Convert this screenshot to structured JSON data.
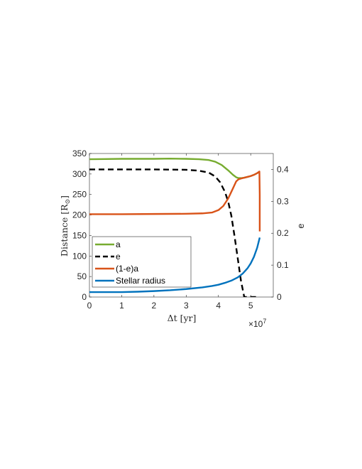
{
  "chart_data": {
    "type": "line",
    "xlabel": "Δt [yr]",
    "x_multiplier_label": "×10",
    "x_multiplier_exp": "7",
    "ylabel_left": "Distance [R",
    "ylabel_left_symbol": "⊙",
    "ylabel_left_end": "]",
    "ylabel_right": "e",
    "xlim": [
      0,
      5.7
    ],
    "ylim_left": [
      0,
      350
    ],
    "ylim_right": [
      0,
      0.45
    ],
    "x_ticks": [
      0,
      1,
      2,
      3,
      4,
      5
    ],
    "x_tick_labels": [
      "0",
      "1",
      "2",
      "3",
      "4",
      "5"
    ],
    "y_left_ticks": [
      0,
      50,
      100,
      150,
      200,
      250,
      300,
      350
    ],
    "y_left_tick_labels": [
      "0",
      "50",
      "100",
      "150",
      "200",
      "250",
      "300",
      "350"
    ],
    "y_right_ticks": [
      0,
      0.1,
      0.2,
      0.3,
      0.4
    ],
    "y_right_tick_labels": [
      "0",
      "0.1",
      "0.2",
      "0.3",
      "0.4"
    ],
    "grid": false,
    "legend_position": "bottom-left",
    "series": [
      {
        "name": "a",
        "axis": "left",
        "color": "#77AC30",
        "style": "solid",
        "x": [
          0,
          0.5,
          1.0,
          1.5,
          2.0,
          2.5,
          3.0,
          3.4,
          3.7,
          3.9,
          4.1,
          4.3,
          4.45,
          4.55,
          4.62,
          4.7,
          4.8,
          4.9,
          5.0,
          5.1,
          5.2,
          5.28
        ],
        "y": [
          336,
          336.5,
          337,
          337,
          337,
          337.5,
          337,
          336,
          334,
          330,
          322,
          309,
          298,
          292,
          290,
          290,
          291,
          293,
          295,
          298,
          302,
          306
        ]
      },
      {
        "name": "e",
        "axis": "right",
        "color": "#000000",
        "style": "dashed",
        "x": [
          0,
          1.0,
          2.0,
          3.0,
          3.4,
          3.7,
          3.9,
          4.05,
          4.2,
          4.3,
          4.4,
          4.5,
          4.6,
          4.7,
          4.8,
          4.9,
          5.0,
          5.1,
          5.2
        ],
        "y": [
          0.4,
          0.4,
          0.4,
          0.399,
          0.396,
          0.39,
          0.378,
          0.36,
          0.33,
          0.3,
          0.255,
          0.19,
          0.12,
          0.05,
          0.0,
          0.0,
          0.0,
          0.0,
          0.0
        ]
      },
      {
        "name": "(1-e)a",
        "axis": "left",
        "color": "#D95319",
        "style": "solid",
        "x": [
          0,
          1.0,
          2.0,
          3.0,
          3.5,
          3.8,
          4.0,
          4.15,
          4.3,
          4.45,
          4.55,
          4.62,
          4.7,
          4.8,
          4.9,
          5.0,
          5.1,
          5.2,
          5.27,
          5.28,
          5.28
        ],
        "y": [
          202,
          202,
          202.5,
          203,
          204,
          206,
          212,
          222,
          240,
          265,
          282,
          287,
          289,
          291,
          293,
          295,
          298,
          302,
          306,
          250,
          160
        ]
      },
      {
        "name": "Stellar radius",
        "axis": "left",
        "color": "#0072BD",
        "style": "solid",
        "x": [
          0,
          0.5,
          1.0,
          1.5,
          2.0,
          2.5,
          3.0,
          3.5,
          3.8,
          4.0,
          4.2,
          4.4,
          4.6,
          4.75,
          4.9,
          5.0,
          5.1,
          5.2,
          5.28
        ],
        "y": [
          12,
          12,
          12,
          13,
          14.5,
          16.5,
          19.5,
          23.5,
          27,
          30,
          34.5,
          40,
          48,
          57,
          70,
          82,
          98,
          120,
          145
        ]
      }
    ]
  }
}
